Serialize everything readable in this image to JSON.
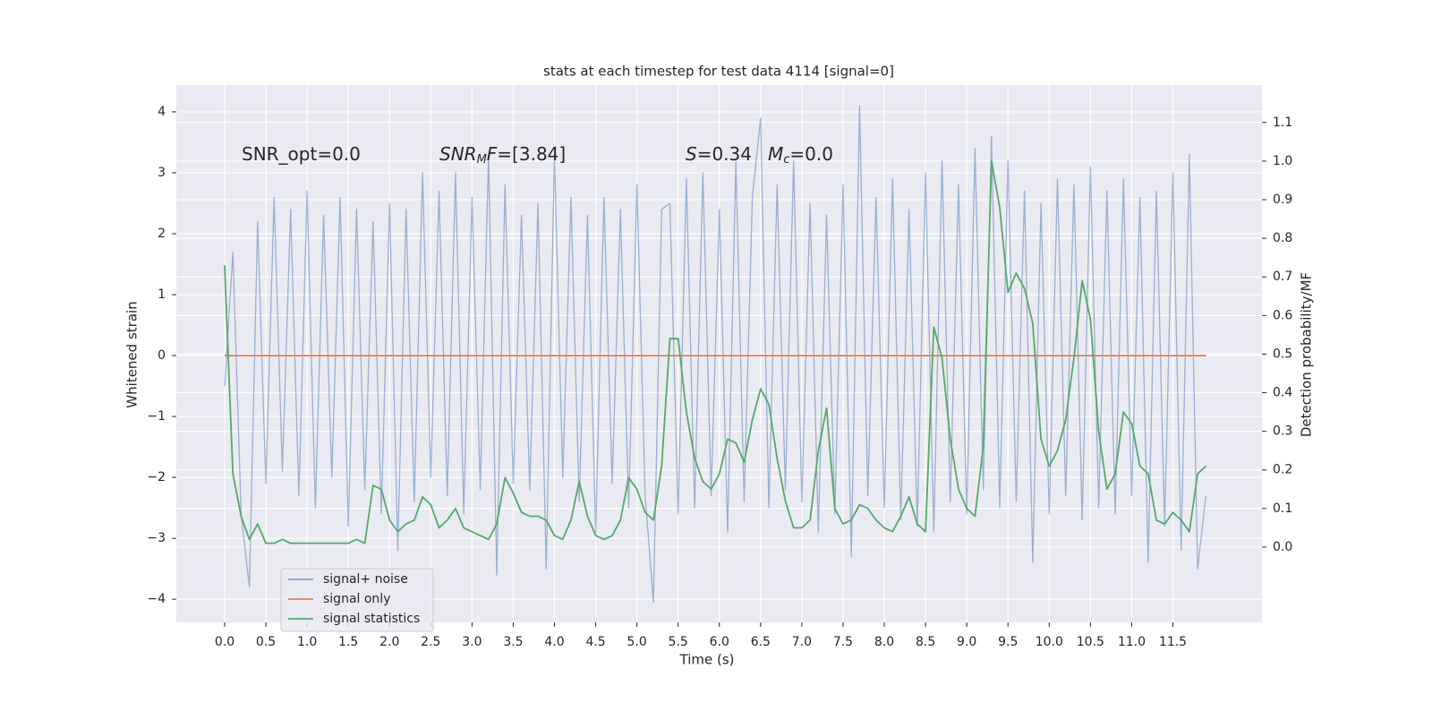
{
  "chart_data": {
    "type": "line",
    "title": "stats at each timestep for test data 4114 [signal=0]",
    "xlabel": "Time (s)",
    "ylabel": "Whitened strain",
    "y2label": "Detection probability/MF",
    "annotations": [
      [
        {
          "t": "SNR_opt=0.0",
          "style": "normal"
        }
      ],
      [
        {
          "t": "SNR",
          "style": "italic"
        },
        {
          "t": "M",
          "style": "sub"
        },
        {
          "t": "F",
          "style": "italic"
        },
        {
          "t": "=[3.84]",
          "style": "normal"
        }
      ],
      [
        {
          "t": "S",
          "style": "italic"
        },
        {
          "t": "=0.34",
          "style": "normal"
        }
      ],
      [
        {
          "t": "M",
          "style": "italic"
        },
        {
          "t": "c",
          "style": "sub"
        },
        {
          "t": "=0.0",
          "style": "normal"
        }
      ]
    ],
    "x": [
      0,
      0.1,
      0.2,
      0.3,
      0.4,
      0.5,
      0.6,
      0.7,
      0.8,
      0.9,
      1,
      1.1,
      1.2,
      1.3,
      1.4,
      1.5,
      1.6,
      1.7,
      1.8,
      1.9,
      2,
      2.1,
      2.2,
      2.3,
      2.4,
      2.5,
      2.6,
      2.7,
      2.8,
      2.9,
      3,
      3.1,
      3.2,
      3.3,
      3.4,
      3.5,
      3.6,
      3.7,
      3.8,
      3.9,
      4,
      4.1,
      4.2,
      4.3,
      4.4,
      4.5,
      4.6,
      4.7,
      4.8,
      4.9,
      5,
      5.1,
      5.2,
      5.3,
      5.4,
      5.5,
      5.6,
      5.7,
      5.8,
      5.9,
      6,
      6.1,
      6.2,
      6.3,
      6.4,
      6.5,
      6.6,
      6.7,
      6.8,
      6.9,
      7,
      7.1,
      7.2,
      7.3,
      7.4,
      7.5,
      7.6,
      7.7,
      7.8,
      7.9,
      8,
      8.1,
      8.2,
      8.3,
      8.4,
      8.5,
      8.6,
      8.7,
      8.8,
      8.9,
      9,
      9.1,
      9.2,
      9.3,
      9.4,
      9.5,
      9.6,
      9.7,
      9.8,
      9.9,
      10,
      10.1,
      10.2,
      10.3,
      10.4,
      10.5,
      10.6,
      10.7,
      10.8,
      10.9,
      11,
      11.1,
      11.2,
      11.3,
      11.4,
      11.5,
      11.6,
      11.7,
      11.8,
      11.9
    ],
    "series": [
      {
        "name": "signal+ noise",
        "color": "#4c72b0",
        "values": [
          -0.5,
          1.7,
          -2.6,
          -3.8,
          2.2,
          -2.1,
          2.6,
          -1.9,
          2.4,
          -2.3,
          2.7,
          -2.5,
          2.3,
          -2.0,
          2.6,
          -2.8,
          2.4,
          -2.2,
          2.2,
          -2.6,
          2.5,
          -3.2,
          2.4,
          -2.4,
          3.0,
          -2.0,
          2.7,
          -2.3,
          3.0,
          -2.6,
          2.6,
          -2.2,
          3.3,
          -3.6,
          2.8,
          -2.1,
          2.3,
          -2.2,
          2.5,
          -3.5,
          3.3,
          -2.0,
          2.6,
          -2.4,
          2.3,
          -2.9,
          2.6,
          -2.1,
          2.4,
          -2.5,
          2.8,
          -2.3,
          -4.05,
          2.4,
          2.5,
          -2.6,
          2.9,
          -2.5,
          3.0,
          -2.3,
          2.4,
          -2.9,
          3.2,
          -2.4,
          2.6,
          3.9,
          -2.5,
          2.8,
          -2.2,
          3.2,
          -2.4,
          2.5,
          -2.9,
          2.3,
          -2.6,
          2.8,
          -3.3,
          4.1,
          -2.3,
          2.6,
          -2.5,
          2.9,
          -2.7,
          2.4,
          -2.8,
          3.0,
          -2.9,
          3.2,
          -2.4,
          2.8,
          -2.6,
          3.4,
          -2.2,
          3.6,
          -2.5,
          3.2,
          -2.4,
          2.7,
          -3.4,
          2.5,
          -2.6,
          2.9,
          -2.3,
          2.8,
          -2.7,
          3.1,
          -2.5,
          2.7,
          -2.6,
          2.9,
          -2.3,
          2.6,
          -3.4,
          2.7,
          -2.8,
          3.0,
          -3.2,
          3.3,
          -3.5,
          -2.3
        ]
      },
      {
        "name": "signal only",
        "color": "#dd8452",
        "values": [
          0,
          0,
          0,
          0,
          0,
          0,
          0,
          0,
          0,
          0,
          0,
          0,
          0,
          0,
          0,
          0,
          0,
          0,
          0,
          0,
          0,
          0,
          0,
          0,
          0,
          0,
          0,
          0,
          0,
          0,
          0,
          0,
          0,
          0,
          0,
          0,
          0,
          0,
          0,
          0,
          0,
          0,
          0,
          0,
          0,
          0,
          0,
          0,
          0,
          0,
          0,
          0,
          0,
          0,
          0,
          0,
          0,
          0,
          0,
          0,
          0,
          0,
          0,
          0,
          0,
          0,
          0,
          0,
          0,
          0,
          0,
          0,
          0,
          0,
          0,
          0,
          0,
          0,
          0,
          0,
          0,
          0,
          0,
          0,
          0,
          0,
          0,
          0,
          0,
          0,
          0,
          0,
          0,
          0,
          0,
          0,
          0,
          0,
          0,
          0,
          0,
          0,
          0,
          0,
          0,
          0,
          0,
          0,
          0,
          0,
          0,
          0,
          0,
          0,
          0,
          0,
          0,
          0,
          0,
          0
        ]
      },
      {
        "name": "signal statistics",
        "color": "#55a868",
        "axis": "y2",
        "values": [
          0.73,
          0.19,
          0.08,
          0.02,
          0.06,
          0.01,
          0.01,
          0.02,
          0.01,
          0.01,
          0.01,
          0.01,
          0.01,
          0.01,
          0.01,
          0.01,
          0.02,
          0.01,
          0.16,
          0.15,
          0.07,
          0.04,
          0.06,
          0.07,
          0.13,
          0.11,
          0.05,
          0.07,
          0.1,
          0.05,
          0.04,
          0.03,
          0.02,
          0.06,
          0.18,
          0.14,
          0.09,
          0.08,
          0.08,
          0.07,
          0.03,
          0.02,
          0.07,
          0.17,
          0.08,
          0.03,
          0.02,
          0.03,
          0.07,
          0.18,
          0.15,
          0.09,
          0.07,
          0.21,
          0.54,
          0.54,
          0.35,
          0.23,
          0.17,
          0.15,
          0.19,
          0.28,
          0.27,
          0.22,
          0.33,
          0.41,
          0.37,
          0.23,
          0.12,
          0.05,
          0.05,
          0.07,
          0.25,
          0.36,
          0.1,
          0.06,
          0.07,
          0.11,
          0.1,
          0.07,
          0.05,
          0.04,
          0.08,
          0.13,
          0.06,
          0.04,
          0.57,
          0.49,
          0.28,
          0.15,
          0.1,
          0.08,
          0.26,
          1.0,
          0.88,
          0.66,
          0.71,
          0.67,
          0.58,
          0.28,
          0.21,
          0.25,
          0.33,
          0.49,
          0.69,
          0.59,
          0.3,
          0.15,
          0.19,
          0.35,
          0.32,
          0.21,
          0.19,
          0.07,
          0.06,
          0.09,
          0.07,
          0.04,
          0.19,
          0.21
        ]
      }
    ],
    "xlim": [
      -0.586,
      12.58
    ],
    "xticks": [
      {
        "value": 0,
        "label": "0.0"
      },
      {
        "value": 0.5,
        "label": "0.5"
      },
      {
        "value": 1,
        "label": "1.0"
      },
      {
        "value": 1.5,
        "label": "1.5"
      },
      {
        "value": 2,
        "label": "2.0"
      },
      {
        "value": 2.5,
        "label": "2.5"
      },
      {
        "value": 3,
        "label": "3.0"
      },
      {
        "value": 3.5,
        "label": "3.5"
      },
      {
        "value": 4,
        "label": "4.0"
      },
      {
        "value": 4.5,
        "label": "4.5"
      },
      {
        "value": 5,
        "label": "5.0"
      },
      {
        "value": 5.5,
        "label": "5.5"
      },
      {
        "value": 6,
        "label": "6.0"
      },
      {
        "value": 6.5,
        "label": "6.5"
      },
      {
        "value": 7,
        "label": "7.0"
      },
      {
        "value": 7.5,
        "label": "7.5"
      },
      {
        "value": 8,
        "label": "8.0"
      },
      {
        "value": 8.5,
        "label": "8.5"
      },
      {
        "value": 9,
        "label": "9.0"
      },
      {
        "value": 9.5,
        "label": "9.5"
      },
      {
        "value": 10,
        "label": "10.0"
      },
      {
        "value": 10.5,
        "label": "10.5"
      },
      {
        "value": 11,
        "label": "11.0"
      },
      {
        "value": 11.5,
        "label": "11.5"
      }
    ],
    "ylim": [
      -4.38,
      4.44
    ],
    "yticks": [
      {
        "value": -4,
        "label": "−4"
      },
      {
        "value": -3,
        "label": "−3"
      },
      {
        "value": -2,
        "label": "−2"
      },
      {
        "value": -1,
        "label": "−1"
      },
      0,
      1,
      2,
      3,
      4
    ],
    "y2lim": [
      -0.195,
      1.197
    ],
    "y2ticks": [
      {
        "value": 0,
        "label": "0.0"
      },
      {
        "value": 0.1,
        "label": "0.1"
      },
      {
        "value": 0.2,
        "label": "0.2"
      },
      {
        "value": 0.3,
        "label": "0.3"
      },
      {
        "value": 0.4,
        "label": "0.4"
      },
      {
        "value": 0.5,
        "label": "0.5"
      },
      {
        "value": 0.6,
        "label": "0.6"
      },
      {
        "value": 0.7,
        "label": "0.7"
      },
      {
        "value": 0.8,
        "label": "0.8"
      },
      {
        "value": 0.9,
        "label": "0.9"
      },
      {
        "value": 1,
        "label": "1.0"
      },
      {
        "value": 1.1,
        "label": "1.1"
      }
    ],
    "grid": true,
    "legend": "lower left"
  }
}
